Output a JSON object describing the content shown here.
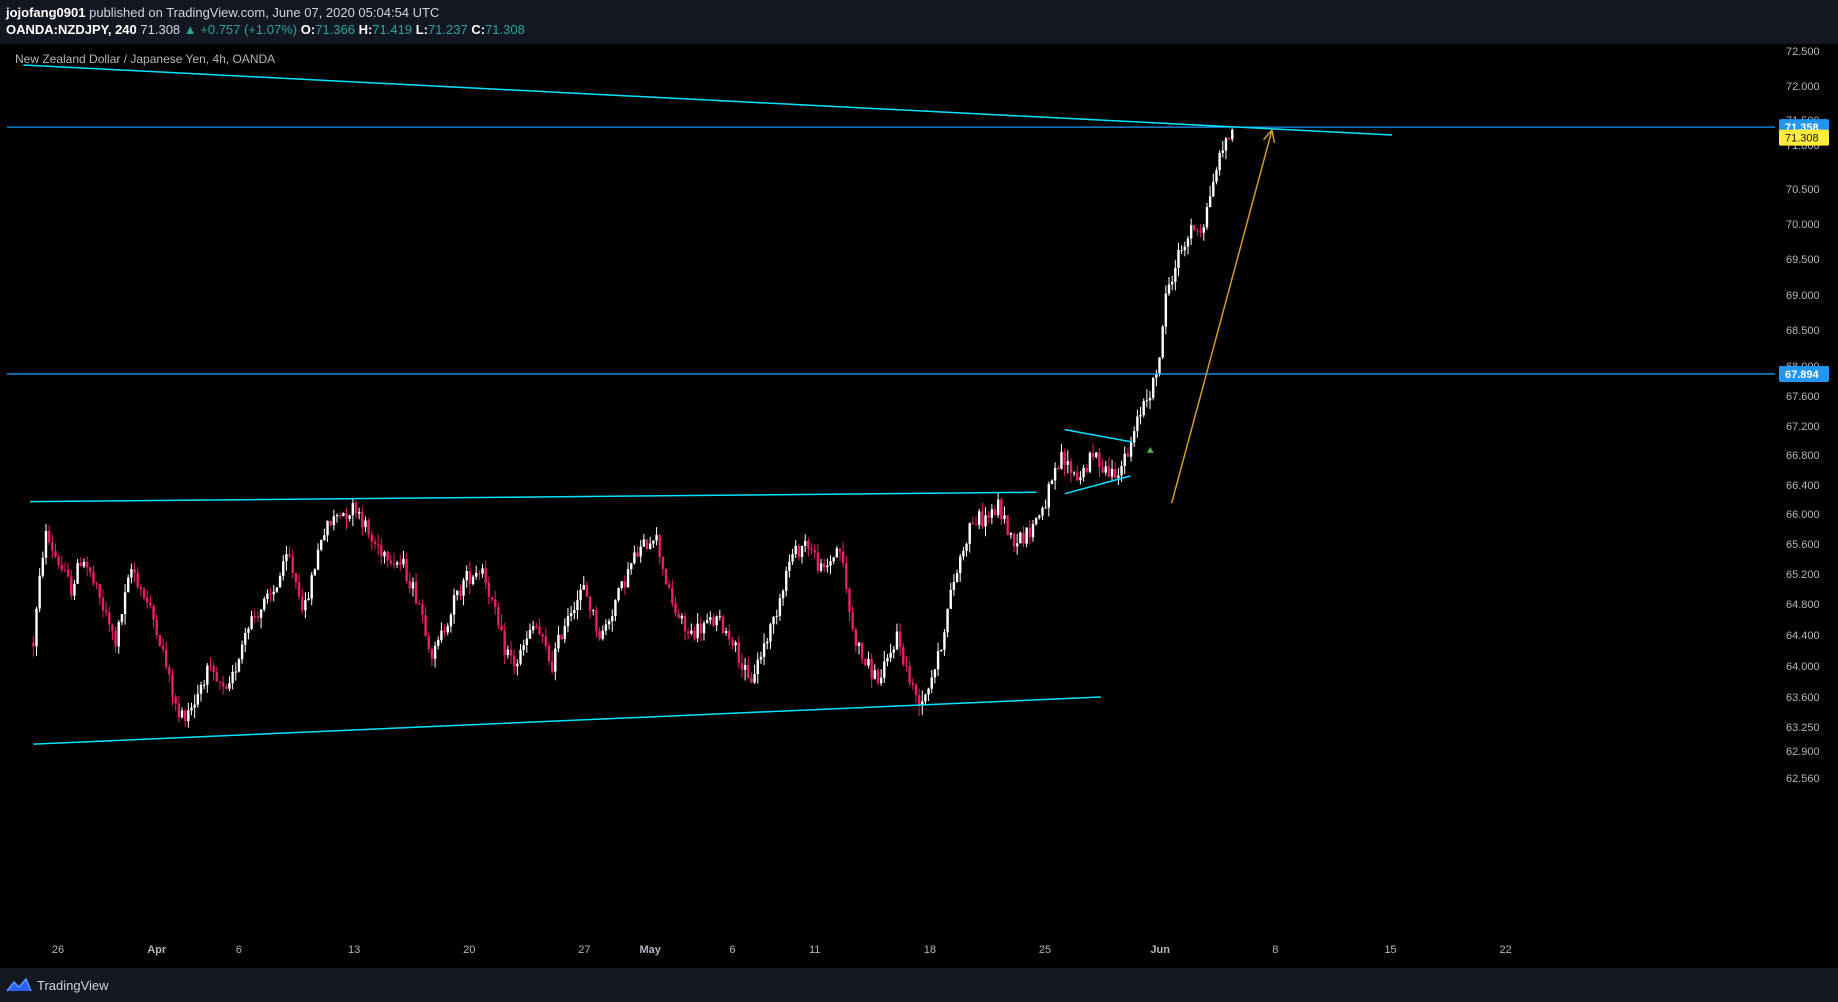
{
  "header": {
    "author": "jojofang0901",
    "published_text": "published on TradingView.com, June 07, 2020 05:04:54 UTC",
    "symbol": "OANDA:NZDJPY, 240",
    "last": "71.308",
    "change": "▲ +0.757 (+1.07%)",
    "o_label": "O:",
    "o_value": "71.366",
    "h_label": "H:",
    "h_value": "71.419",
    "l_label": "L:",
    "l_value": "71.237",
    "c_label": "C:",
    "c_value": "71.308"
  },
  "footer": {
    "brand": "TradingView"
  },
  "colors": {
    "up": "#ffffff",
    "down": "#e91e63",
    "trendline": "#00e5ff",
    "hline": "#2196f3",
    "arrow": "#d39a23",
    "price_tag_current": "#ffeb3b",
    "price_tag_hline": "#2196f3"
  },
  "chart_data": {
    "type": "candlestick",
    "title": "New Zealand Dollar / Japanese Yen, 4h, OANDA",
    "y_axis": {
      "ticks": [
        "72.500",
        "72.000",
        "71.500",
        "71.000",
        "70.500",
        "70.000",
        "69.500",
        "69.000",
        "68.500",
        "68.000",
        "67.600",
        "67.200",
        "66.800",
        "66.400",
        "66.000",
        "65.600",
        "65.200",
        "64.800",
        "64.400",
        "64.000",
        "63.600",
        "63.250",
        "62.900",
        "62.560"
      ],
      "tick_values": [
        72.5,
        72.0,
        71.5,
        71.0,
        70.5,
        70.0,
        69.5,
        69.0,
        68.5,
        68.0,
        67.6,
        67.2,
        66.8,
        66.4,
        66.0,
        65.6,
        65.2,
        64.8,
        64.4,
        64.0,
        63.6,
        63.25,
        62.9,
        62.56
      ],
      "price_labels": [
        {
          "text": "71.358",
          "value": 71.358,
          "kind": "hline"
        },
        {
          "text": "71.308",
          "value": 71.308,
          "kind": "current"
        },
        {
          "text": "67.894",
          "value": 67.894,
          "kind": "hline"
        }
      ]
    },
    "x_axis": {
      "labels": [
        {
          "text": "26",
          "day": 0
        },
        {
          "text": "Apr",
          "day": 6
        },
        {
          "text": "6",
          "day": 11
        },
        {
          "text": "13",
          "day": 18
        },
        {
          "text": "20",
          "day": 25
        },
        {
          "text": "27",
          "day": 32
        },
        {
          "text": "May",
          "day": 36
        },
        {
          "text": "6",
          "day": 41
        },
        {
          "text": "11",
          "day": 46
        },
        {
          "text": "18",
          "day": 53
        },
        {
          "text": "25",
          "day": 60
        },
        {
          "text": "Jun",
          "day": 67
        },
        {
          "text": "8",
          "day": 74
        },
        {
          "text": "15",
          "day": 81
        },
        {
          "text": "22",
          "day": 88
        }
      ]
    },
    "anchors": [
      {
        "day": -1.5,
        "price": 64.3
      },
      {
        "day": -0.8,
        "price": 65.75
      },
      {
        "day": 0.8,
        "price": 65.0
      },
      {
        "day": 1.5,
        "price": 65.45
      },
      {
        "day": 3.5,
        "price": 64.3
      },
      {
        "day": 4.5,
        "price": 65.3
      },
      {
        "day": 6.0,
        "price": 64.5
      },
      {
        "day": 7.3,
        "price": 63.35
      },
      {
        "day": 8.3,
        "price": 63.55
      },
      {
        "day": 9.0,
        "price": 63.95
      },
      {
        "day": 10.3,
        "price": 63.6
      },
      {
        "day": 11.5,
        "price": 64.55
      },
      {
        "day": 13.0,
        "price": 64.9
      },
      {
        "day": 14.0,
        "price": 65.45
      },
      {
        "day": 15.0,
        "price": 64.7
      },
      {
        "day": 16.0,
        "price": 65.7
      },
      {
        "day": 17.0,
        "price": 66.0
      },
      {
        "day": 18.2,
        "price": 66.1
      },
      {
        "day": 19.0,
        "price": 65.65
      },
      {
        "day": 21.0,
        "price": 65.3
      },
      {
        "day": 22.0,
        "price": 64.8
      },
      {
        "day": 22.8,
        "price": 64.1
      },
      {
        "day": 24.0,
        "price": 64.8
      },
      {
        "day": 24.8,
        "price": 65.15
      },
      {
        "day": 25.8,
        "price": 65.3
      },
      {
        "day": 27.0,
        "price": 64.3
      },
      {
        "day": 27.8,
        "price": 64.0
      },
      {
        "day": 29.0,
        "price": 64.55
      },
      {
        "day": 30.0,
        "price": 64.0
      },
      {
        "day": 31.0,
        "price": 64.7
      },
      {
        "day": 32.0,
        "price": 65.0
      },
      {
        "day": 33.0,
        "price": 64.35
      },
      {
        "day": 34.0,
        "price": 64.9
      },
      {
        "day": 35.0,
        "price": 65.4
      },
      {
        "day": 36.3,
        "price": 65.75
      },
      {
        "day": 37.3,
        "price": 64.8
      },
      {
        "day": 38.3,
        "price": 64.4
      },
      {
        "day": 40.0,
        "price": 64.6
      },
      {
        "day": 41.0,
        "price": 64.35
      },
      {
        "day": 42.0,
        "price": 63.75
      },
      {
        "day": 43.5,
        "price": 64.6
      },
      {
        "day": 44.5,
        "price": 65.4
      },
      {
        "day": 45.5,
        "price": 65.65
      },
      {
        "day": 46.5,
        "price": 65.2
      },
      {
        "day": 47.5,
        "price": 65.6
      },
      {
        "day": 48.3,
        "price": 64.45
      },
      {
        "day": 49.0,
        "price": 64.05
      },
      {
        "day": 50.0,
        "price": 63.8
      },
      {
        "day": 51.0,
        "price": 64.4
      },
      {
        "day": 52.0,
        "price": 63.65
      },
      {
        "day": 52.6,
        "price": 63.6
      },
      {
        "day": 53.5,
        "price": 64.1
      },
      {
        "day": 54.5,
        "price": 65.15
      },
      {
        "day": 55.5,
        "price": 65.9
      },
      {
        "day": 56.5,
        "price": 65.95
      },
      {
        "day": 57.2,
        "price": 66.1
      },
      {
        "day": 58.0,
        "price": 65.65
      },
      {
        "day": 59.0,
        "price": 65.75
      },
      {
        "day": 60.0,
        "price": 66.15
      },
      {
        "day": 61.0,
        "price": 66.75
      },
      {
        "day": 62.0,
        "price": 66.5
      },
      {
        "day": 63.0,
        "price": 66.8
      },
      {
        "day": 64.0,
        "price": 66.55
      },
      {
        "day": 65.0,
        "price": 66.75
      },
      {
        "day": 66.0,
        "price": 67.55
      },
      {
        "day": 66.8,
        "price": 67.85
      },
      {
        "day": 67.4,
        "price": 69.05
      },
      {
        "day": 68.2,
        "price": 69.6
      },
      {
        "day": 69.0,
        "price": 69.95
      },
      {
        "day": 69.6,
        "price": 69.95
      },
      {
        "day": 70.2,
        "price": 70.6
      },
      {
        "day": 71.0,
        "price": 71.1
      },
      {
        "day": 71.4,
        "price": 71.308
      }
    ],
    "trendlines": [
      {
        "name": "upper-channel",
        "from": {
          "day": -2.1,
          "price": 72.3
        },
        "to": {
          "day": 81.1,
          "price": 71.2
        }
      },
      {
        "name": "mid-resistance",
        "from": {
          "day": -1.7,
          "price": 66.17
        },
        "to": {
          "day": 59.5,
          "price": 66.3
        }
      },
      {
        "name": "lower-support",
        "from": {
          "day": -1.5,
          "price": 63.0
        },
        "to": {
          "day": 63.4,
          "price": 63.6
        }
      },
      {
        "name": "pennant-top",
        "from": {
          "day": 61.2,
          "price": 67.15
        },
        "to": {
          "day": 65.3,
          "price": 66.98
        }
      },
      {
        "name": "pennant-bottom",
        "from": {
          "day": 61.2,
          "price": 66.28
        },
        "to": {
          "day": 65.2,
          "price": 66.52
        }
      }
    ],
    "horizontal_lines": [
      71.358,
      67.894
    ],
    "projection_arrow": {
      "from": {
        "day": 67.7,
        "price": 66.15
      },
      "to": {
        "day": 73.8,
        "price": 71.3
      }
    },
    "signal_marker": {
      "day": 66.4,
      "price": 66.87
    }
  }
}
